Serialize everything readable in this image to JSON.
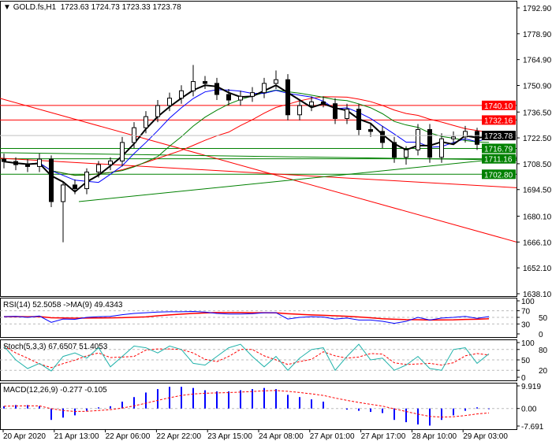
{
  "header": {
    "symbol": "GOLD.fs,H1",
    "open": "1723.63",
    "high": "1724.73",
    "low": "1723.33",
    "close": "1723.78"
  },
  "colors": {
    "bull": "#000000",
    "bear": "#000000",
    "support": "#008000",
    "resistance": "#ff0000",
    "ma_fast": "#000000",
    "ma_blue": "#0000ff",
    "ma_green": "#008000",
    "ma_red": "#ff0000",
    "rsi": "#0000ff",
    "rsi_ma": "#ff0000",
    "stoch_k": "#20b2aa",
    "stoch_d": "#ff0000",
    "macd_hist": "#0000ff",
    "macd_signal": "#ff0000"
  },
  "chart_data": [
    {
      "type": "candlestick",
      "title": "GOLD.fs,H1",
      "ylim": [
        1638.1,
        1792.9
      ],
      "price_ticks": [
        "1792.90",
        "1778.90",
        "1764.90",
        "1750.90",
        "1736.50",
        "1722.50",
        "1708.50",
        "1694.50",
        "1680.10",
        "1666.10",
        "1652.10",
        "1638.10"
      ],
      "time_labels": [
        "20 Apr 2020",
        "21 Apr 13:00",
        "22 Apr 06:00",
        "22 Apr 22:00",
        "23 Apr 15:00",
        "24 Apr 08:00",
        "27 Apr 01:00",
        "27 Apr 17:00",
        "28 Apr 10:00",
        "29 Apr 03:00"
      ],
      "open": [
        1711,
        1709.7,
        1708,
        1707,
        1711,
        1688,
        1697,
        1695,
        1704,
        1708,
        1710,
        1720,
        1728,
        1734,
        1740,
        1744,
        1748,
        1753,
        1752,
        1746,
        1743,
        1745,
        1747,
        1752,
        1754,
        1735,
        1740,
        1742,
        1741,
        1733,
        1738,
        1727,
        1726,
        1720,
        1712,
        1716,
        1727,
        1712,
        1722,
        1723,
        1726,
        1723.63
      ],
      "high": [
        1714,
        1712,
        1711,
        1714,
        1713,
        1699,
        1700,
        1706,
        1710,
        1712,
        1723,
        1731,
        1737,
        1743,
        1747,
        1751,
        1762,
        1756,
        1755,
        1749,
        1748,
        1750,
        1755,
        1759,
        1757,
        1743,
        1745,
        1745,
        1744,
        1741,
        1741,
        1730,
        1729,
        1723,
        1718,
        1730,
        1730,
        1725,
        1726,
        1729,
        1728,
        1724.73
      ],
      "low": [
        1706,
        1705,
        1704,
        1704,
        1685,
        1666,
        1692,
        1692,
        1701,
        1705,
        1707,
        1717,
        1725,
        1731,
        1737,
        1741,
        1745,
        1749,
        1743,
        1740,
        1740,
        1742,
        1744,
        1749,
        1732,
        1732,
        1737,
        1739,
        1730,
        1730,
        1724,
        1723,
        1717,
        1709,
        1708,
        1713,
        1709,
        1709,
        1719,
        1720,
        1716,
        1723.33
      ],
      "close": [
        1709.7,
        1708,
        1707,
        1711,
        1688,
        1697,
        1695,
        1704,
        1708,
        1710,
        1720,
        1728,
        1734,
        1740,
        1744,
        1748,
        1753,
        1752,
        1746,
        1743,
        1745,
        1747,
        1752,
        1754,
        1735,
        1740,
        1742,
        1741,
        1733,
        1738,
        1727,
        1726,
        1720,
        1712,
        1716,
        1727,
        1712,
        1722,
        1723,
        1726,
        1719,
        1723.78
      ],
      "current_price": {
        "value": 1723.78,
        "label": "1723.78"
      },
      "horizontal_levels": [
        {
          "value": 1740.1,
          "label": "1740.10",
          "kind": "resistance"
        },
        {
          "value": 1732.16,
          "label": "1732.16",
          "kind": "resistance"
        },
        {
          "value": 1716.79,
          "label": "1716.79",
          "kind": "support"
        },
        {
          "value": 1711.16,
          "label": "1711.16",
          "kind": "support"
        },
        {
          "value": 1702.8,
          "label": "1702.80",
          "kind": "support"
        }
      ],
      "trendlines": [
        {
          "kind": "resistance",
          "from": 1743.9,
          "to": 1666.1
        },
        {
          "kind": "resistance",
          "from": 1711.5,
          "to": 1695.5
        },
        {
          "kind": "support",
          "from": 1714.5,
          "to": 1710.5
        },
        {
          "kind": "support",
          "start_index": 6,
          "from": 1688,
          "to": 1712
        }
      ]
    },
    {
      "type": "line",
      "title": "RSI(14) 52.5058 ->MA(9) 49.4343",
      "ylim": [
        0,
        100
      ],
      "ticks": [
        "100",
        "70",
        "50",
        "30",
        "0"
      ],
      "levels": [
        30,
        50,
        70
      ],
      "rsi": [
        52,
        53,
        50,
        54,
        35,
        45,
        44,
        50,
        52,
        53,
        58,
        62,
        64,
        66,
        67,
        67,
        68,
        66,
        62,
        60,
        60,
        61,
        64,
        64,
        45,
        50,
        52,
        51,
        45,
        48,
        42,
        42,
        38,
        32,
        38,
        50,
        42,
        48,
        50,
        53,
        47,
        52.5
      ]
    },
    {
      "type": "line",
      "title": "Stoch(5,3,3) 67.6507 51.4053",
      "ylim": [
        0,
        100
      ],
      "ticks": [
        "100",
        "80",
        "50",
        "20",
        "0"
      ],
      "levels": [
        20,
        50,
        80
      ],
      "k": [
        90,
        50,
        25,
        40,
        18,
        60,
        70,
        55,
        85,
        30,
        60,
        90,
        85,
        70,
        90,
        80,
        40,
        35,
        60,
        85,
        95,
        60,
        30,
        60,
        20,
        55,
        80,
        85,
        20,
        60,
        95,
        50,
        55,
        20,
        35,
        60,
        25,
        20,
        80,
        85,
        40,
        67.65
      ]
    },
    {
      "type": "bar",
      "title": "MACD(12,26,9) -0.277 -0.105",
      "ylim": [
        -7.691,
        9.919
      ],
      "ticks": [
        "9.919",
        "0.00",
        "-7.691"
      ],
      "main": [
        1,
        1.5,
        1.5,
        1,
        -5,
        -4,
        -3,
        -1,
        0.5,
        1,
        3,
        5,
        7,
        8.5,
        9.5,
        9.5,
        9,
        8,
        7.5,
        7.5,
        8,
        8.5,
        9,
        8.5,
        6,
        5,
        4,
        3,
        0,
        -0.5,
        -1,
        -1.5,
        -2,
        -5,
        -6,
        -7,
        -7.5,
        -5,
        -3,
        -1,
        0.5,
        -0.277
      ]
    }
  ]
}
